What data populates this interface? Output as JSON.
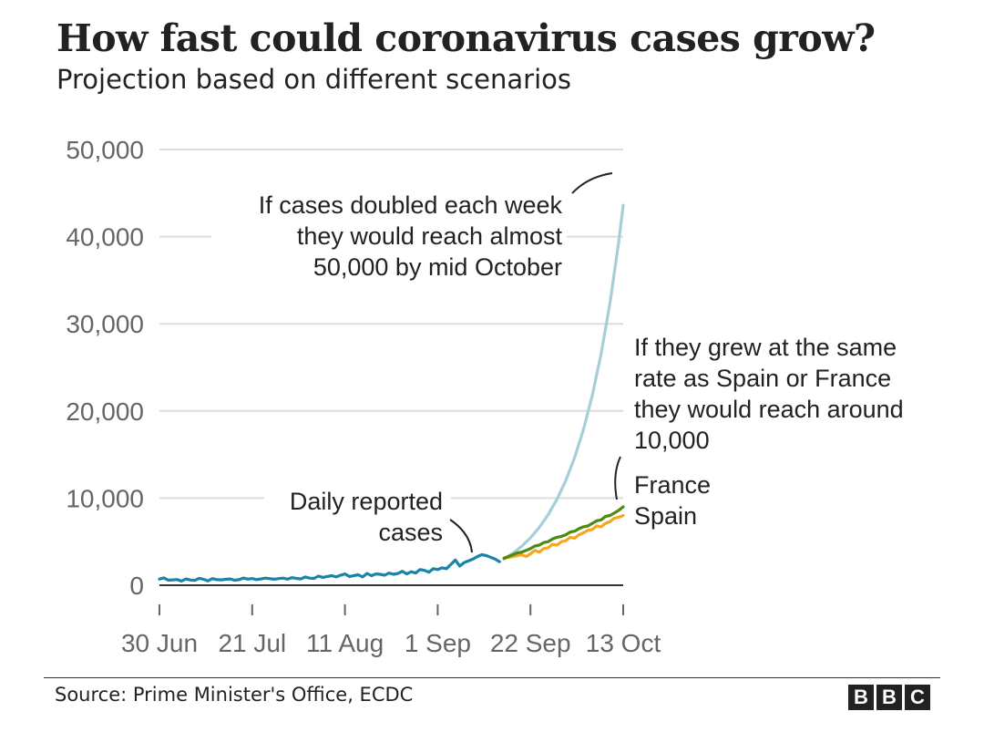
{
  "header": {
    "title": "How fast could coronavirus cases grow?",
    "subtitle": "Projection based on different scenarios"
  },
  "footer": {
    "source": "Source: Prime Minister's Office, ECDC",
    "logo_letters": [
      "B",
      "B",
      "C"
    ]
  },
  "colors": {
    "reported": "#1a84a8",
    "doubling": "#a6ced9",
    "france": "#4f8a10",
    "spain": "#f5a623",
    "grid": "#dddddd",
    "axis_text": "#666666",
    "annotation": "#222222"
  },
  "chart_data": {
    "type": "line",
    "title": "How fast could coronavirus cases grow?",
    "subtitle": "Projection based on different scenarios",
    "xlabel": "",
    "ylabel": "",
    "ylim": [
      0,
      50000
    ],
    "xlim_days": [
      0,
      105
    ],
    "x_unit": "days since 30 Jun",
    "yticks": [
      {
        "value": 0,
        "label": "0"
      },
      {
        "value": 10000,
        "label": "10,000"
      },
      {
        "value": 20000,
        "label": "20,000"
      },
      {
        "value": 30000,
        "label": "30,000"
      },
      {
        "value": 40000,
        "label": "40,000"
      },
      {
        "value": 50000,
        "label": "50,000"
      }
    ],
    "xticks": [
      {
        "day": 0,
        "label": "30 Jun"
      },
      {
        "day": 21,
        "label": "21 Jul"
      },
      {
        "day": 42,
        "label": "11 Aug"
      },
      {
        "day": 63,
        "label": "1 Sep"
      },
      {
        "day": 84,
        "label": "22 Sep"
      },
      {
        "day": 105,
        "label": "13 Oct"
      }
    ],
    "series": [
      {
        "name": "Daily reported cases",
        "color": "#1a84a8",
        "x": [
          0,
          1,
          2,
          3,
          4,
          5,
          6,
          7,
          8,
          9,
          10,
          11,
          12,
          13,
          14,
          15,
          16,
          17,
          18,
          19,
          20,
          21,
          22,
          23,
          24,
          25,
          26,
          27,
          28,
          29,
          30,
          31,
          32,
          33,
          34,
          35,
          36,
          37,
          38,
          39,
          40,
          41,
          42,
          43,
          44,
          45,
          46,
          47,
          48,
          49,
          50,
          51,
          52,
          53,
          54,
          55,
          56,
          57,
          58,
          59,
          60,
          61,
          62,
          63,
          64,
          65,
          66,
          67,
          68,
          69,
          70,
          71,
          72,
          73,
          74,
          75,
          76,
          77
        ],
        "y": [
          700,
          850,
          580,
          620,
          650,
          480,
          720,
          600,
          550,
          800,
          680,
          500,
          760,
          640,
          620,
          680,
          720,
          580,
          640,
          830,
          700,
          760,
          650,
          720,
          820,
          750,
          690,
          760,
          820,
          700,
          870,
          780,
          720,
          950,
          820,
          780,
          1050,
          900,
          1000,
          1100,
          950,
          1150,
          1300,
          1000,
          1100,
          1200,
          950,
          1350,
          1100,
          1300,
          1250,
          1150,
          1400,
          1250,
          1350,
          1600,
          1300,
          1550,
          1400,
          1800,
          1700,
          1500,
          1900,
          1800,
          2000,
          1900,
          2400,
          2900,
          2200,
          2600,
          2800,
          3000,
          3300,
          3500,
          3400,
          3200,
          3000,
          2700
        ]
      },
      {
        "name": "If cases doubled each week",
        "color": "#a6ced9",
        "x": [
          78,
          80,
          82,
          84,
          86,
          88,
          90,
          92,
          94,
          96,
          98,
          100,
          102,
          104,
          105
        ],
        "y": [
          3000,
          3660,
          4460,
          5440,
          6630,
          8090,
          9860,
          12020,
          14660,
          17880,
          21800,
          26580,
          32400,
          39500,
          43600
        ]
      },
      {
        "name": "France",
        "color": "#4f8a10",
        "x": [
          78,
          79,
          80,
          81,
          82,
          83,
          84,
          85,
          86,
          87,
          88,
          89,
          90,
          91,
          92,
          93,
          94,
          95,
          96,
          97,
          98,
          99,
          100,
          101,
          102,
          103,
          104,
          105
        ],
        "y": [
          3100,
          3300,
          3500,
          3700,
          3800,
          4000,
          4200,
          4500,
          4600,
          4900,
          5000,
          5300,
          5500,
          5600,
          5800,
          6100,
          6200,
          6500,
          6700,
          6800,
          7100,
          7400,
          7500,
          7900,
          8000,
          8300,
          8600,
          9000
        ]
      },
      {
        "name": "Spain",
        "color": "#f5a623",
        "x": [
          78,
          79,
          80,
          81,
          82,
          83,
          84,
          85,
          86,
          87,
          88,
          89,
          90,
          91,
          92,
          93,
          94,
          95,
          96,
          97,
          98,
          99,
          100,
          101,
          102,
          103,
          104,
          105
        ],
        "y": [
          3100,
          3200,
          3300,
          3400,
          3500,
          3300,
          3600,
          4000,
          3800,
          4200,
          4300,
          4700,
          4600,
          5000,
          5100,
          5500,
          5400,
          5800,
          6000,
          6300,
          6400,
          6800,
          6700,
          7100,
          7300,
          7700,
          7800,
          8000
        ]
      }
    ],
    "annotations": [
      {
        "name": "doubling",
        "lines": [
          "If cases doubled each week",
          "they would reach almost",
          "50,000 by mid October"
        ]
      },
      {
        "name": "spain-france",
        "lines": [
          "If they grew at the same",
          "rate as Spain or France",
          "they would reach around",
          "10,000"
        ]
      },
      {
        "name": "reported",
        "lines": [
          "Daily reported",
          "cases"
        ]
      }
    ],
    "legend_labels": [
      {
        "name": "france",
        "label": "France"
      },
      {
        "name": "spain",
        "label": "Spain"
      }
    ]
  }
}
